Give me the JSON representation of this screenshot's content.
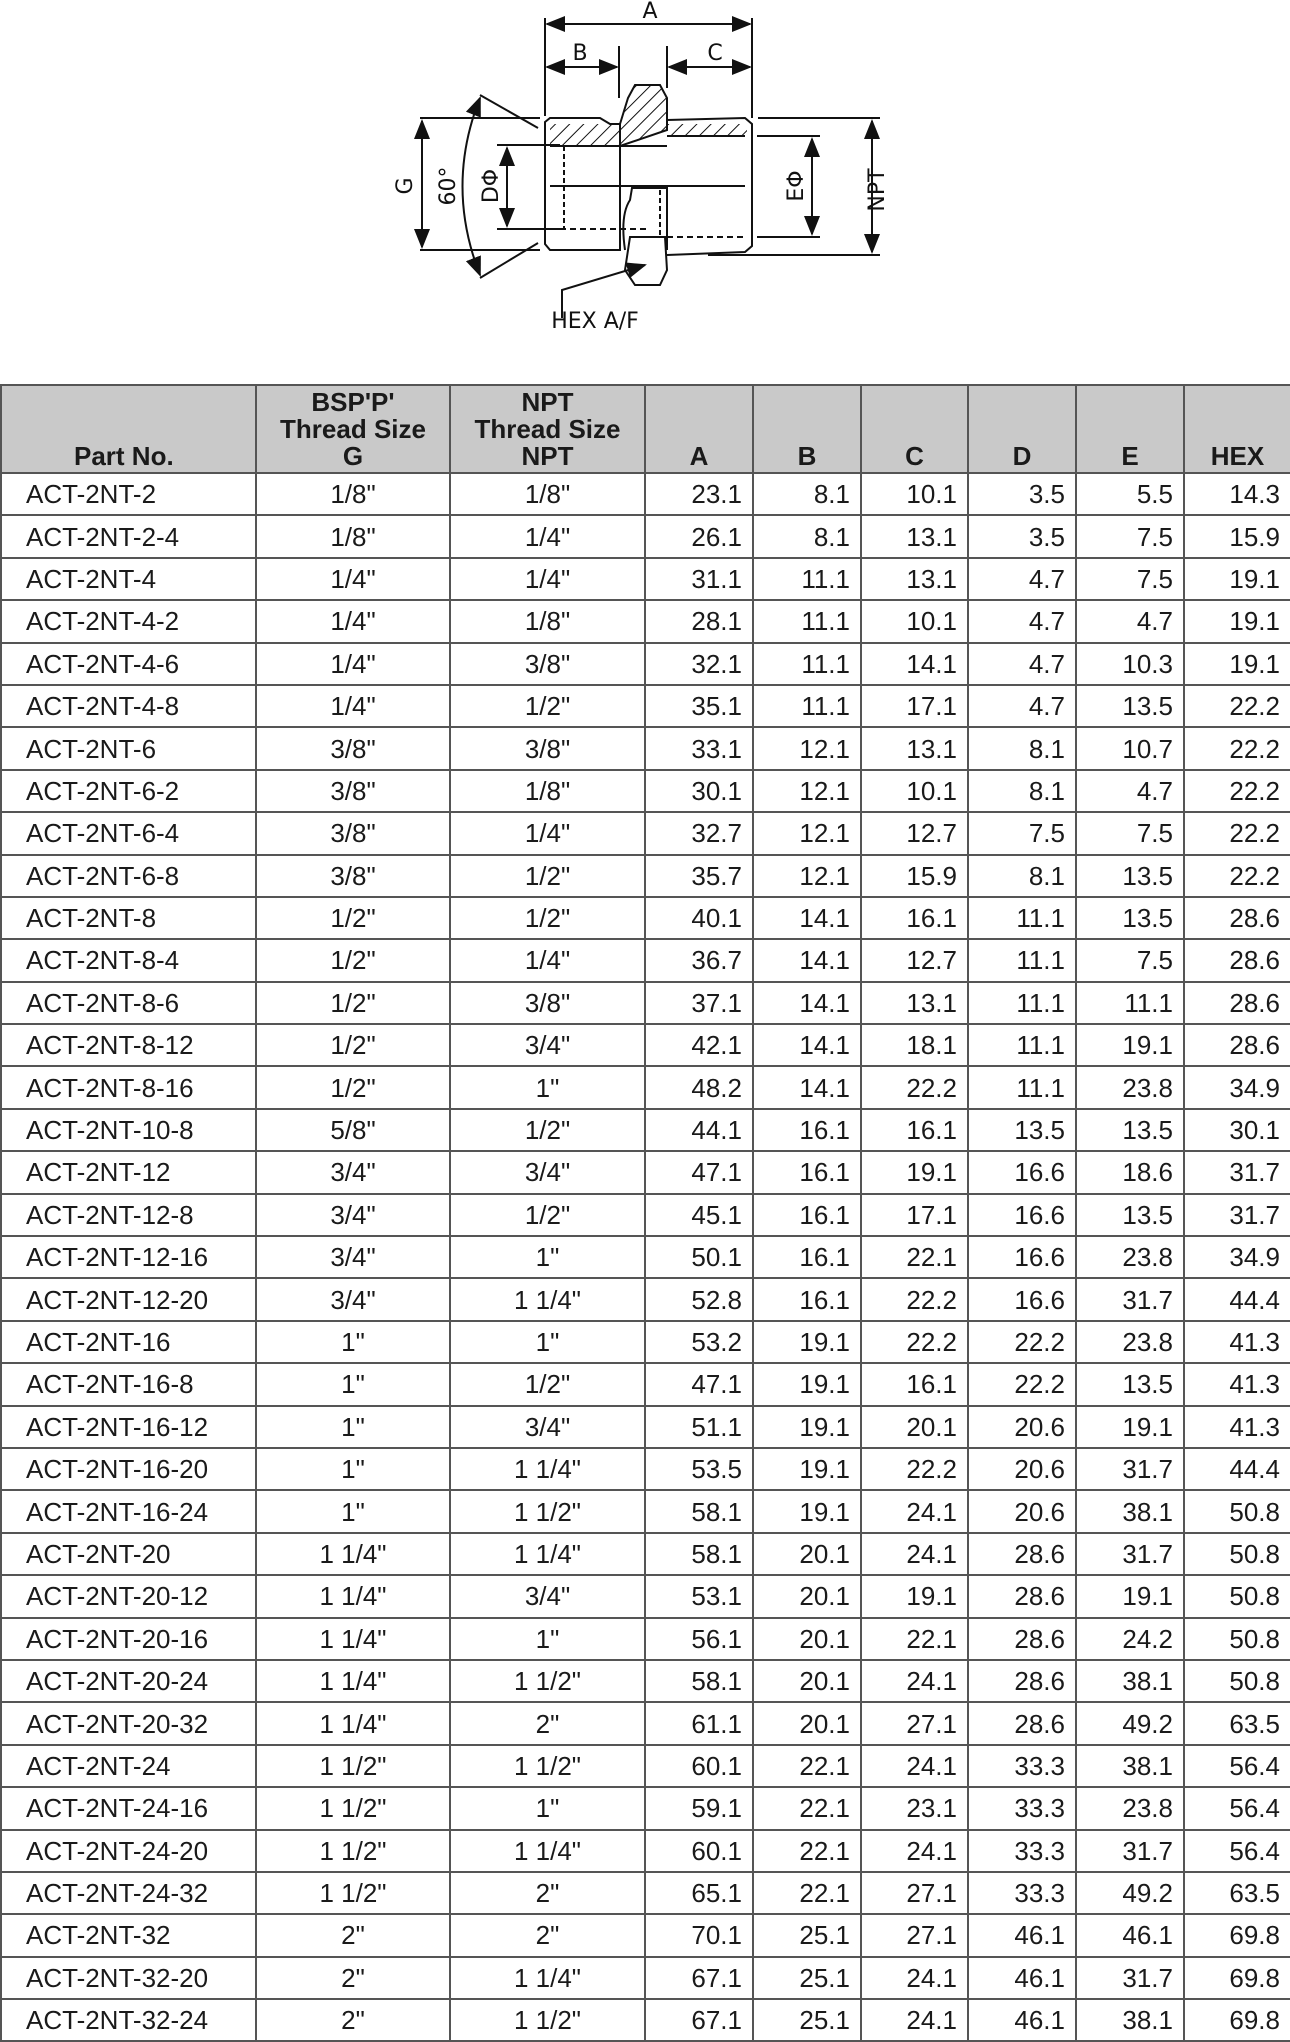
{
  "diagram": {
    "labels": {
      "a": "A",
      "b": "B",
      "c": "C",
      "g": "G",
      "angle": "60°",
      "d": "DΦ",
      "e": "EΦ",
      "npt": "NPT",
      "hex": "HEX A/F"
    }
  },
  "table": {
    "headers": {
      "part": "Part No.",
      "g": [
        "BSP'P'",
        "Thread Size",
        "G"
      ],
      "npt": [
        "NPT",
        "Thread Size",
        "NPT"
      ],
      "a": "A",
      "b": "B",
      "c": "C",
      "d": "D",
      "e": "E",
      "hex": "HEX"
    },
    "rows": [
      [
        "ACT-2NT-2",
        "1/8\"",
        "1/8\"",
        "23.1",
        "8.1",
        "10.1",
        "3.5",
        "5.5",
        "14.3"
      ],
      [
        "ACT-2NT-2-4",
        "1/8\"",
        "1/4\"",
        "26.1",
        "8.1",
        "13.1",
        "3.5",
        "7.5",
        "15.9"
      ],
      [
        "ACT-2NT-4",
        "1/4\"",
        "1/4\"",
        "31.1",
        "11.1",
        "13.1",
        "4.7",
        "7.5",
        "19.1"
      ],
      [
        "ACT-2NT-4-2",
        "1/4\"",
        "1/8\"",
        "28.1",
        "11.1",
        "10.1",
        "4.7",
        "4.7",
        "19.1"
      ],
      [
        "ACT-2NT-4-6",
        "1/4\"",
        "3/8\"",
        "32.1",
        "11.1",
        "14.1",
        "4.7",
        "10.3",
        "19.1"
      ],
      [
        "ACT-2NT-4-8",
        "1/4\"",
        "1/2\"",
        "35.1",
        "11.1",
        "17.1",
        "4.7",
        "13.5",
        "22.2"
      ],
      [
        "ACT-2NT-6",
        "3/8\"",
        "3/8\"",
        "33.1",
        "12.1",
        "13.1",
        "8.1",
        "10.7",
        "22.2"
      ],
      [
        "ACT-2NT-6-2",
        "3/8\"",
        "1/8\"",
        "30.1",
        "12.1",
        "10.1",
        "8.1",
        "4.7",
        "22.2"
      ],
      [
        "ACT-2NT-6-4",
        "3/8\"",
        "1/4\"",
        "32.7",
        "12.1",
        "12.7",
        "7.5",
        "7.5",
        "22.2"
      ],
      [
        "ACT-2NT-6-8",
        "3/8\"",
        "1/2\"",
        "35.7",
        "12.1",
        "15.9",
        "8.1",
        "13.5",
        "22.2"
      ],
      [
        "ACT-2NT-8",
        "1/2\"",
        "1/2\"",
        "40.1",
        "14.1",
        "16.1",
        "11.1",
        "13.5",
        "28.6"
      ],
      [
        "ACT-2NT-8-4",
        "1/2\"",
        "1/4\"",
        "36.7",
        "14.1",
        "12.7",
        "11.1",
        "7.5",
        "28.6"
      ],
      [
        "ACT-2NT-8-6",
        "1/2\"",
        "3/8\"",
        "37.1",
        "14.1",
        "13.1",
        "11.1",
        "11.1",
        "28.6"
      ],
      [
        "ACT-2NT-8-12",
        "1/2\"",
        "3/4\"",
        "42.1",
        "14.1",
        "18.1",
        "11.1",
        "19.1",
        "28.6"
      ],
      [
        "ACT-2NT-8-16",
        "1/2\"",
        "1\"",
        "48.2",
        "14.1",
        "22.2",
        "11.1",
        "23.8",
        "34.9"
      ],
      [
        "ACT-2NT-10-8",
        "5/8\"",
        "1/2\"",
        "44.1",
        "16.1",
        "16.1",
        "13.5",
        "13.5",
        "30.1"
      ],
      [
        "ACT-2NT-12",
        "3/4\"",
        "3/4\"",
        "47.1",
        "16.1",
        "19.1",
        "16.6",
        "18.6",
        "31.7"
      ],
      [
        "ACT-2NT-12-8",
        "3/4\"",
        "1/2\"",
        "45.1",
        "16.1",
        "17.1",
        "16.6",
        "13.5",
        "31.7"
      ],
      [
        "ACT-2NT-12-16",
        "3/4\"",
        "1\"",
        "50.1",
        "16.1",
        "22.1",
        "16.6",
        "23.8",
        "34.9"
      ],
      [
        "ACT-2NT-12-20",
        "3/4\"",
        "1 1/4\"",
        "52.8",
        "16.1",
        "22.2",
        "16.6",
        "31.7",
        "44.4"
      ],
      [
        "ACT-2NT-16",
        "1\"",
        "1\"",
        "53.2",
        "19.1",
        "22.2",
        "22.2",
        "23.8",
        "41.3"
      ],
      [
        "ACT-2NT-16-8",
        "1\"",
        "1/2\"",
        "47.1",
        "19.1",
        "16.1",
        "22.2",
        "13.5",
        "41.3"
      ],
      [
        "ACT-2NT-16-12",
        "1\"",
        "3/4\"",
        "51.1",
        "19.1",
        "20.1",
        "20.6",
        "19.1",
        "41.3"
      ],
      [
        "ACT-2NT-16-20",
        "1\"",
        "1 1/4\"",
        "53.5",
        "19.1",
        "22.2",
        "20.6",
        "31.7",
        "44.4"
      ],
      [
        "ACT-2NT-16-24",
        "1\"",
        "1 1/2\"",
        "58.1",
        "19.1",
        "24.1",
        "20.6",
        "38.1",
        "50.8"
      ],
      [
        "ACT-2NT-20",
        "1 1/4\"",
        "1 1/4\"",
        "58.1",
        "20.1",
        "24.1",
        "28.6",
        "31.7",
        "50.8"
      ],
      [
        "ACT-2NT-20-12",
        "1 1/4\"",
        "3/4\"",
        "53.1",
        "20.1",
        "19.1",
        "28.6",
        "19.1",
        "50.8"
      ],
      [
        "ACT-2NT-20-16",
        "1 1/4\"",
        "1\"",
        "56.1",
        "20.1",
        "22.1",
        "28.6",
        "24.2",
        "50.8"
      ],
      [
        "ACT-2NT-20-24",
        "1 1/4\"",
        "1 1/2\"",
        "58.1",
        "20.1",
        "24.1",
        "28.6",
        "38.1",
        "50.8"
      ],
      [
        "ACT-2NT-20-32",
        "1 1/4\"",
        "2\"",
        "61.1",
        "20.1",
        "27.1",
        "28.6",
        "49.2",
        "63.5"
      ],
      [
        "ACT-2NT-24",
        "1 1/2\"",
        "1 1/2\"",
        "60.1",
        "22.1",
        "24.1",
        "33.3",
        "38.1",
        "56.4"
      ],
      [
        "ACT-2NT-24-16",
        "1 1/2\"",
        "1\"",
        "59.1",
        "22.1",
        "23.1",
        "33.3",
        "23.8",
        "56.4"
      ],
      [
        "ACT-2NT-24-20",
        "1 1/2\"",
        "1 1/4\"",
        "60.1",
        "22.1",
        "24.1",
        "33.3",
        "31.7",
        "56.4"
      ],
      [
        "ACT-2NT-24-32",
        "1 1/2\"",
        "2\"",
        "65.1",
        "22.1",
        "27.1",
        "33.3",
        "49.2",
        "63.5"
      ],
      [
        "ACT-2NT-32",
        "2\"",
        "2\"",
        "70.1",
        "25.1",
        "27.1",
        "46.1",
        "46.1",
        "69.8"
      ],
      [
        "ACT-2NT-32-20",
        "2\"",
        "1 1/4\"",
        "67.1",
        "25.1",
        "24.1",
        "46.1",
        "31.7",
        "69.8"
      ],
      [
        "ACT-2NT-32-24",
        "2\"",
        "1 1/2\"",
        "67.1",
        "25.1",
        "24.1",
        "46.1",
        "38.1",
        "69.8"
      ]
    ]
  }
}
